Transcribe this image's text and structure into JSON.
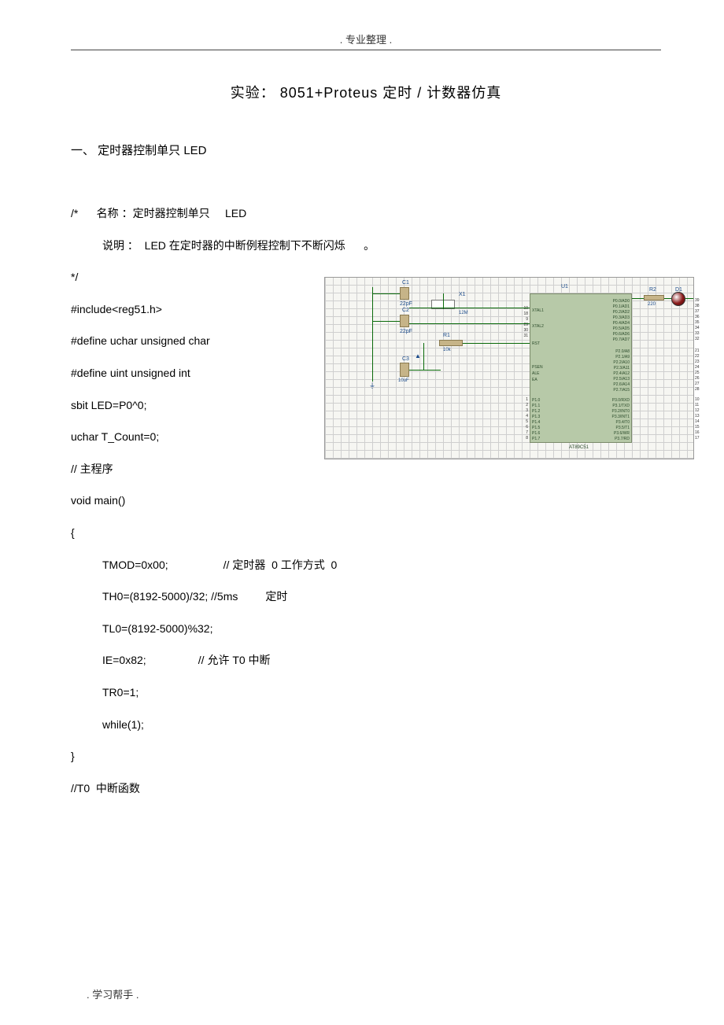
{
  "header": {
    "text": ". 专业整理 ."
  },
  "title": {
    "text": "实验：  8051+Proteus  定时  /      计数器仿真"
  },
  "section1": {
    "heading": "一、  定时器控制单只      LED"
  },
  "code": {
    "l1": "/*      名称 ：定时器控制单只     LED",
    "l2": "说明 ：  LED 在定时器的中断例程控制下不断闪烁      。",
    "l3": "*/",
    "l4": "#include<reg51.h>",
    "l5": "#define uchar unsigned char",
    "l6": "#define uint unsigned int",
    "l7": "sbit LED=P0^0;",
    "l8": "uchar T_Count=0;",
    "l9": "// 主程序",
    "l10": "void main()",
    "l11": "{",
    "l12": "TMOD=0x00;                  // 定时器  0 工作方式  0",
    "l13": "TH0=(8192-5000)/32; //5ms         定时",
    "l14": "TL0=(8192-5000)%32;",
    "l15": "IE=0x82;                 // 允许 T0 中断",
    "l16": "TR0=1;",
    "l17": "while(1);",
    "l18": "}",
    "l19": "//T0  中断函数"
  },
  "diagram": {
    "labels": {
      "u1": "U1",
      "c1": "C1",
      "c2": "C2",
      "c3": "C3",
      "r1": "R1",
      "r2": "R2",
      "d1": "D1",
      "x1": "X1",
      "c1v": "22pF",
      "c2v": "22pF",
      "c3v": "10uF",
      "r1v": "10k",
      "r2v": "220",
      "x1v": "12M",
      "mcu": "AT89C51",
      "xtal1": "XTAL1",
      "xtal2": "XTAL2",
      "rst": "RST",
      "psen": "PSEN",
      "ale": "ALE",
      "ea": "EA"
    },
    "pins_left_p1": [
      "P1.0",
      "P1.1",
      "P1.2",
      "P1.3",
      "P1.4",
      "P1.5",
      "P1.6",
      "P1.7"
    ],
    "pins_right_p0": [
      "P0.0/AD0",
      "P0.1/AD1",
      "P0.2/AD2",
      "P0.3/AD3",
      "P0.4/AD4",
      "P0.5/AD5",
      "P0.6/AD6",
      "P0.7/AD7"
    ],
    "pins_right_p2": [
      "P2.0/A8",
      "P2.1/A9",
      "P2.2/A10",
      "P2.3/A11",
      "P2.4/A12",
      "P2.5/A13",
      "P2.6/A14",
      "P2.7/A15"
    ],
    "pins_right_p3": [
      "P3.0/RXD",
      "P3.1/TXD",
      "P3.2/INT0",
      "P3.3/INT1",
      "P3.4/T0",
      "P3.5/T1",
      "P3.6/WR",
      "P3.7/RD"
    ],
    "nums_p0": [
      "39",
      "38",
      "37",
      "36",
      "35",
      "34",
      "33",
      "32"
    ],
    "nums_p2": [
      "21",
      "22",
      "23",
      "24",
      "25",
      "26",
      "27",
      "28"
    ],
    "nums_p3": [
      "10",
      "11",
      "12",
      "13",
      "14",
      "15",
      "16",
      "17"
    ],
    "nums_p1": [
      "1",
      "2",
      "3",
      "4",
      "5",
      "6",
      "7",
      "8"
    ],
    "nums_ctrl_l": [
      "19",
      "18",
      "9",
      "29",
      "30",
      "31"
    ],
    "colors": {
      "bg": "#f6f6f2",
      "grid": "#cfcfcf",
      "wire": "#0a6a0a",
      "chip": "#b7c9a8",
      "passive": "#c6b488",
      "led": "#8a1a1a",
      "label": "#1a4a8a"
    }
  },
  "footer": {
    "text": ". 学习帮手 ."
  }
}
